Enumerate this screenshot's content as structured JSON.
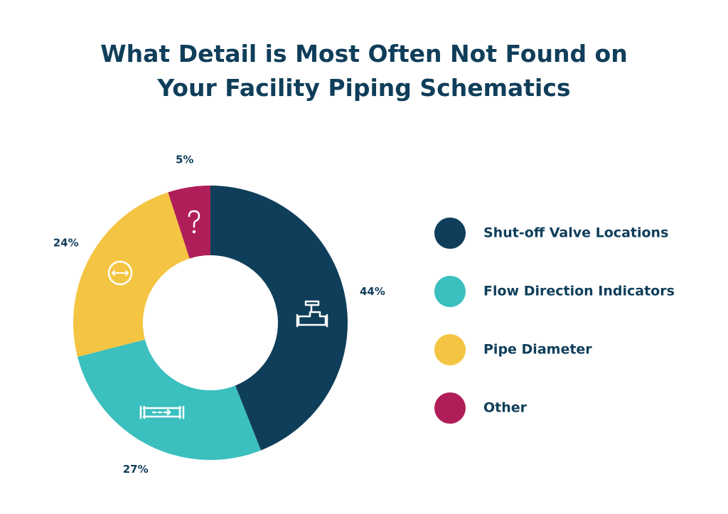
{
  "chart_data": {
    "type": "donut",
    "title": "What Detail is Most Often Not Found on Your Facility Piping Schematics",
    "categories": [
      "Shut-off Valve Locations",
      "Flow Direction Indicators",
      "Pipe Diameter",
      "Other"
    ],
    "values": [
      44,
      27,
      24,
      5
    ],
    "value_labels": [
      "44%",
      "27%",
      "24%",
      "5%"
    ],
    "colors": [
      "#0f3e5a",
      "#3bbfbf",
      "#f4c542",
      "#b01e5a"
    ]
  }
}
